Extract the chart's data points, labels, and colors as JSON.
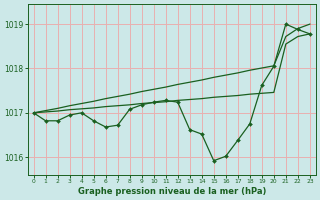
{
  "title": "Graphe pression niveau de la mer (hPa)",
  "bg_color": "#cce8e8",
  "grid_color": "#e8b0b0",
  "line_color": "#1a6020",
  "xlim": [
    -0.5,
    23.5
  ],
  "ylim": [
    1015.6,
    1019.45
  ],
  "yticks": [
    1016,
    1017,
    1018,
    1019
  ],
  "xticks": [
    0,
    1,
    2,
    3,
    4,
    5,
    6,
    7,
    8,
    9,
    10,
    11,
    12,
    13,
    14,
    15,
    16,
    17,
    18,
    19,
    20,
    21,
    22,
    23
  ],
  "measured": [
    1017.0,
    1016.82,
    1016.82,
    1016.95,
    1017.0,
    1016.82,
    1016.68,
    1016.72,
    1017.08,
    1017.18,
    1017.24,
    1017.28,
    1017.24,
    1016.62,
    1016.52,
    1015.92,
    1016.02,
    1016.38,
    1016.75,
    1017.62,
    1018.05,
    1019.0,
    1018.88,
    1018.78
  ],
  "diag_low": [
    1017.0,
    1017.02,
    1017.04,
    1017.07,
    1017.09,
    1017.11,
    1017.14,
    1017.16,
    1017.18,
    1017.21,
    1017.23,
    1017.25,
    1017.28,
    1017.3,
    1017.32,
    1017.35,
    1017.37,
    1017.39,
    1017.42,
    1017.44,
    1017.46,
    1018.55,
    1018.72,
    1018.78
  ],
  "diag_high": [
    1017.0,
    1017.05,
    1017.1,
    1017.16,
    1017.21,
    1017.26,
    1017.32,
    1017.37,
    1017.42,
    1017.48,
    1017.53,
    1017.58,
    1017.64,
    1017.69,
    1017.74,
    1017.8,
    1017.85,
    1017.9,
    1017.96,
    1018.01,
    1018.06,
    1018.72,
    1018.9,
    1019.0
  ]
}
